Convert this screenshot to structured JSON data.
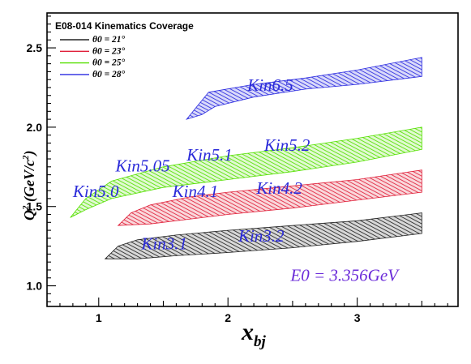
{
  "chart_data": {
    "type": "area",
    "title": "E08-014 Kinematics Coverage",
    "xlabel": {
      "main": "x",
      "sub": "bj"
    },
    "ylabel": {
      "main": "Q",
      "sup1": "2",
      "mid": " (GeV/c",
      "sup2": "2",
      "end": ")"
    },
    "xlim": [
      0.6,
      3.78
    ],
    "ylim": [
      0.87,
      2.72
    ],
    "x_ticks": [
      1,
      2,
      3
    ],
    "y_ticks": [
      "1.0",
      "1.5",
      "2.0",
      "2.5"
    ],
    "grid": false,
    "legend_position": "top-left",
    "series": [
      {
        "name": "θ0 = 21°",
        "theta": "21",
        "color": "#222222",
        "points": [
          [
            1.05,
            1.17
          ],
          [
            1.15,
            1.25
          ],
          [
            1.3,
            1.29
          ],
          [
            1.6,
            1.32
          ],
          [
            2.0,
            1.35
          ],
          [
            2.5,
            1.38
          ],
          [
            3.0,
            1.41
          ],
          [
            3.5,
            1.46
          ],
          [
            3.5,
            1.33
          ],
          [
            3.0,
            1.28
          ],
          [
            2.5,
            1.24
          ],
          [
            2.0,
            1.21
          ],
          [
            1.6,
            1.19
          ],
          [
            1.3,
            1.17
          ]
        ]
      },
      {
        "name": "θ0 = 23°",
        "theta": "23",
        "color": "#e0203a",
        "points": [
          [
            1.15,
            1.38
          ],
          [
            1.25,
            1.46
          ],
          [
            1.4,
            1.51
          ],
          [
            1.7,
            1.56
          ],
          [
            2.0,
            1.59
          ],
          [
            2.5,
            1.63
          ],
          [
            3.0,
            1.67
          ],
          [
            3.5,
            1.73
          ],
          [
            3.5,
            1.59
          ],
          [
            3.0,
            1.54
          ],
          [
            2.5,
            1.49
          ],
          [
            2.0,
            1.45
          ],
          [
            1.7,
            1.42
          ],
          [
            1.4,
            1.39
          ]
        ]
      },
      {
        "name": "θ0 = 25°",
        "theta": "25",
        "color": "#55e000",
        "points": [
          [
            0.78,
            1.43
          ],
          [
            0.9,
            1.55
          ],
          [
            1.1,
            1.66
          ],
          [
            1.5,
            1.75
          ],
          [
            2.0,
            1.82
          ],
          [
            2.5,
            1.87
          ],
          [
            3.0,
            1.93
          ],
          [
            3.5,
            2.0
          ],
          [
            3.5,
            1.86
          ],
          [
            3.0,
            1.78
          ],
          [
            2.5,
            1.72
          ],
          [
            2.0,
            1.67
          ],
          [
            1.5,
            1.62
          ],
          [
            1.1,
            1.55
          ],
          [
            0.9,
            1.48
          ]
        ]
      },
      {
        "name": "θ0 = 28°",
        "theta": "28",
        "color": "#2a2ae0",
        "points": [
          [
            1.68,
            2.05
          ],
          [
            1.75,
            2.12
          ],
          [
            1.85,
            2.22
          ],
          [
            2.2,
            2.27
          ],
          [
            2.6,
            2.31
          ],
          [
            3.0,
            2.36
          ],
          [
            3.5,
            2.44
          ],
          [
            3.5,
            2.32
          ],
          [
            3.0,
            2.27
          ],
          [
            2.6,
            2.24
          ],
          [
            2.2,
            2.19
          ],
          [
            1.9,
            2.13
          ],
          [
            1.8,
            2.08
          ]
        ]
      }
    ],
    "annotations": [
      {
        "text": "Kin6.5",
        "x": 2.15,
        "y": 2.23,
        "size": 26
      },
      {
        "text": "Kin5.2",
        "x": 2.28,
        "y": 1.85,
        "size": 21
      },
      {
        "text": "Kin5.1",
        "x": 1.68,
        "y": 1.79,
        "size": 21
      },
      {
        "text": "Kin5.05",
        "x": 1.13,
        "y": 1.72,
        "size": 21
      },
      {
        "text": "Kin5.0",
        "x": 0.8,
        "y": 1.56,
        "size": 21
      },
      {
        "text": "Kin4.1",
        "x": 1.57,
        "y": 1.56,
        "size": 21
      },
      {
        "text": "Kin4.2",
        "x": 2.22,
        "y": 1.58,
        "size": 21
      },
      {
        "text": "Kin3.2",
        "x": 2.08,
        "y": 1.28,
        "size": 21
      },
      {
        "text": "Kin3.1",
        "x": 1.33,
        "y": 1.23,
        "size": 21
      }
    ],
    "beam_energy": "E0 = 3.356GeV",
    "beam_energy_at": {
      "x": 2.9,
      "y": 1.03
    }
  }
}
